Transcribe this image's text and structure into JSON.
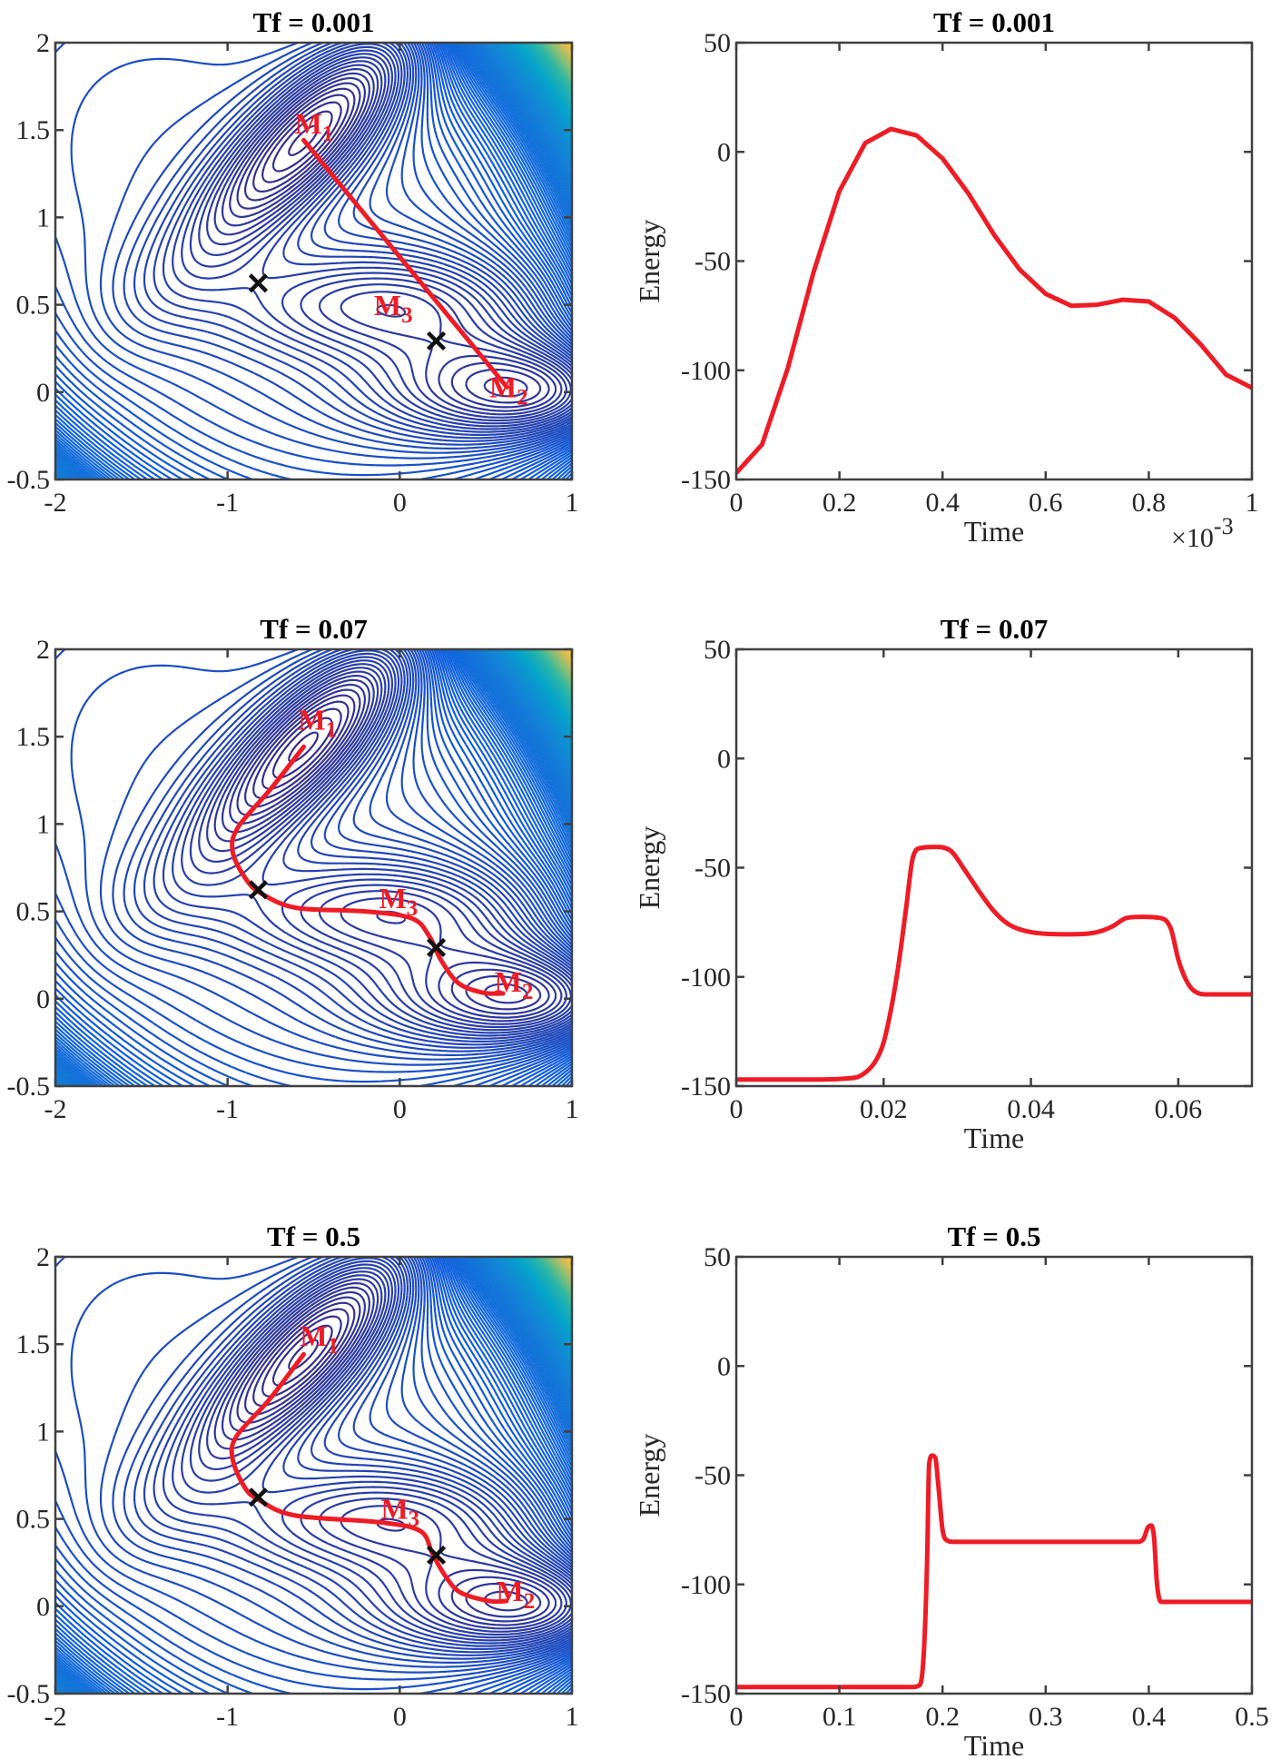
{
  "colors": {
    "path": "#ee1c25",
    "energy_line": "#ee1c25",
    "saddle_marker": "#111111",
    "axes": "#404040",
    "colormap": "parula"
  },
  "chart_data": [
    {
      "type": "contour",
      "title": "Tf = 0.001",
      "surface": "Muller-Brown potential",
      "xlim": [
        -2,
        1
      ],
      "ylim": [
        -0.5,
        2
      ],
      "xticks": [
        -2,
        -1,
        0,
        1
      ],
      "xtick_labels": [
        "-2",
        "-1",
        "0",
        "1"
      ],
      "yticks": [
        -0.5,
        0,
        0.5,
        1,
        1.5,
        2
      ],
      "ytick_labels": [
        "-0.5",
        "0",
        "0.5",
        "1",
        "1.5",
        "2"
      ],
      "path": [
        [
          -0.558,
          1.442
        ],
        [
          0.623,
          0.028
        ]
      ],
      "saddles": [
        [
          -0.822,
          0.624
        ],
        [
          0.212,
          0.293
        ]
      ],
      "labels": [
        {
          "text": "M",
          "sub": "1",
          "at": [
            -0.61,
            1.48
          ]
        },
        {
          "text": "M",
          "sub": "3",
          "at": [
            -0.15,
            0.44
          ]
        },
        {
          "text": "M",
          "sub": "2",
          "at": [
            0.52,
            -0.03
          ]
        }
      ]
    },
    {
      "type": "line",
      "title": "Tf = 0.001",
      "xlabel": "Time",
      "ylabel": "Energy",
      "x_multiplier": "×10",
      "x_multiplier_exp": "-3",
      "xlim": [
        0,
        1
      ],
      "ylim": [
        -150,
        50
      ],
      "xticks": [
        0,
        0.2,
        0.4,
        0.6,
        0.8,
        1
      ],
      "xtick_labels": [
        "0",
        "0.2",
        "0.4",
        "0.6",
        "0.8",
        "1"
      ],
      "yticks": [
        50,
        0,
        -50,
        -100,
        -150
      ],
      "ytick_labels": [
        "50",
        "0",
        "-50",
        "-100",
        "-150"
      ],
      "x": [
        0,
        0.05,
        0.1,
        0.15,
        0.2,
        0.25,
        0.3,
        0.35,
        0.4,
        0.45,
        0.5,
        0.55,
        0.6,
        0.65,
        0.7,
        0.75,
        0.8,
        0.85,
        0.9,
        0.95,
        1.0
      ],
      "y": [
        -147,
        -134,
        -99,
        -55,
        -18,
        4,
        10.5,
        7.5,
        -3,
        -19,
        -38,
        -54,
        -65,
        -70.5,
        -70,
        -67.7,
        -68.5,
        -76,
        -88,
        -102,
        -108
      ]
    },
    {
      "type": "contour",
      "title": "Tf = 0.07",
      "surface": "Muller-Brown potential",
      "xlim": [
        -2,
        1
      ],
      "ylim": [
        -0.5,
        2
      ],
      "xticks": [
        -2,
        -1,
        0,
        1
      ],
      "xtick_labels": [
        "-2",
        "-1",
        "0",
        "1"
      ],
      "yticks": [
        -0.5,
        0,
        0.5,
        1,
        1.5,
        2
      ],
      "ytick_labels": [
        "-0.5",
        "0",
        "0.5",
        "1",
        "1.5",
        "2"
      ],
      "path": [
        [
          -0.558,
          1.442
        ],
        [
          -0.75,
          1.2
        ],
        [
          -0.94,
          0.98
        ],
        [
          -0.97,
          0.84
        ],
        [
          -0.89,
          0.68
        ],
        [
          -0.8,
          0.6
        ],
        [
          -0.6,
          0.52
        ],
        [
          -0.2,
          0.5
        ],
        [
          0.07,
          0.46
        ],
        [
          0.17,
          0.36
        ],
        [
          0.24,
          0.22
        ],
        [
          0.34,
          0.09
        ],
        [
          0.48,
          0.035
        ],
        [
          0.6,
          0.03
        ]
      ],
      "saddles": [
        [
          -0.822,
          0.624
        ],
        [
          0.212,
          0.293
        ]
      ],
      "labels": [
        {
          "text": "M",
          "sub": "1",
          "at": [
            -0.59,
            1.54
          ]
        },
        {
          "text": "M",
          "sub": "3",
          "at": [
            -0.12,
            0.52
          ]
        },
        {
          "text": "M",
          "sub": "2",
          "at": [
            0.55,
            0.04
          ]
        }
      ]
    },
    {
      "type": "line",
      "title": "Tf = 0.07",
      "xlabel": "Time",
      "ylabel": "Energy",
      "xlim": [
        0,
        0.07
      ],
      "ylim": [
        -150,
        50
      ],
      "xticks": [
        0,
        0.02,
        0.04,
        0.06
      ],
      "xtick_labels": [
        "0",
        "0.02",
        "0.04",
        "0.06"
      ],
      "yticks": [
        50,
        0,
        -50,
        -100,
        -150
      ],
      "ytick_labels": [
        "50",
        "0",
        "-50",
        "-100",
        "-150"
      ],
      "x": [
        0,
        0.01,
        0.015,
        0.017,
        0.019,
        0.02,
        0.021,
        0.022,
        0.023,
        0.024,
        0.025,
        0.027,
        0.029,
        0.031,
        0.033,
        0.035,
        0.037,
        0.04,
        0.045,
        0.049,
        0.051,
        0.053,
        0.055,
        0.0575,
        0.059,
        0.06,
        0.061,
        0.062,
        0.064,
        0.07
      ],
      "y": [
        -147,
        -147,
        -146.5,
        -145,
        -138,
        -130,
        -115,
        -95,
        -70,
        -45,
        -41,
        -40.5,
        -42,
        -51,
        -61,
        -70,
        -76,
        -79.5,
        -80.5,
        -79.5,
        -77,
        -73,
        -72.5,
        -73,
        -78,
        -92,
        -101,
        -106,
        -108,
        -108
      ]
    },
    {
      "type": "contour",
      "title": "Tf = 0.5",
      "surface": "Muller-Brown potential",
      "xlim": [
        -2,
        1
      ],
      "ylim": [
        -0.5,
        2
      ],
      "xticks": [
        -2,
        -1,
        0,
        1
      ],
      "xtick_labels": [
        "-2",
        "-1",
        "0",
        "1"
      ],
      "yticks": [
        -0.5,
        0,
        0.5,
        1,
        1.5,
        2
      ],
      "ytick_labels": [
        "-0.5",
        "0",
        "0.5",
        "1",
        "1.5",
        "2"
      ],
      "path": [
        [
          -0.558,
          1.442
        ],
        [
          -0.76,
          1.18
        ],
        [
          -0.95,
          0.97
        ],
        [
          -0.97,
          0.84
        ],
        [
          -0.9,
          0.68
        ],
        [
          -0.82,
          0.61
        ],
        [
          -0.61,
          0.52
        ],
        [
          -0.11,
          0.48
        ],
        [
          0.12,
          0.43
        ],
        [
          0.19,
          0.3
        ],
        [
          0.26,
          0.18
        ],
        [
          0.35,
          0.08
        ],
        [
          0.52,
          0.03
        ],
        [
          0.62,
          0.03
        ]
      ],
      "saddles": [
        [
          -0.822,
          0.624
        ],
        [
          0.212,
          0.293
        ]
      ],
      "labels": [
        {
          "text": "M",
          "sub": "1",
          "at": [
            -0.58,
            1.49
          ]
        },
        {
          "text": "M",
          "sub": "3",
          "at": [
            -0.11,
            0.5
          ]
        },
        {
          "text": "M",
          "sub": "2",
          "at": [
            0.56,
            0.03
          ]
        }
      ]
    },
    {
      "type": "line",
      "title": "Tf = 0.5",
      "xlabel": "Time",
      "ylabel": "Energy",
      "xlim": [
        0,
        0.5
      ],
      "ylim": [
        -150,
        50
      ],
      "xticks": [
        0,
        0.1,
        0.2,
        0.3,
        0.4,
        0.5
      ],
      "xtick_labels": [
        "0",
        "0.1",
        "0.2",
        "0.3",
        "0.4",
        "0.5"
      ],
      "yticks": [
        50,
        0,
        -50,
        -100,
        -150
      ],
      "ytick_labels": [
        "50",
        "0",
        "-50",
        "-100",
        "-150"
      ],
      "x": [
        0,
        0.17,
        0.178,
        0.182,
        0.185,
        0.187,
        0.19,
        0.193,
        0.196,
        0.2,
        0.205,
        0.21,
        0.3,
        0.39,
        0.395,
        0.399,
        0.402,
        0.405,
        0.408,
        0.412,
        0.45,
        0.5
      ],
      "y": [
        -147,
        -147,
        -146,
        -130,
        -90,
        -45,
        -41,
        -42,
        -55,
        -75,
        -80,
        -80.5,
        -80.5,
        -80.5,
        -79,
        -74,
        -73,
        -78,
        -100,
        -108,
        -108,
        -108
      ]
    }
  ]
}
